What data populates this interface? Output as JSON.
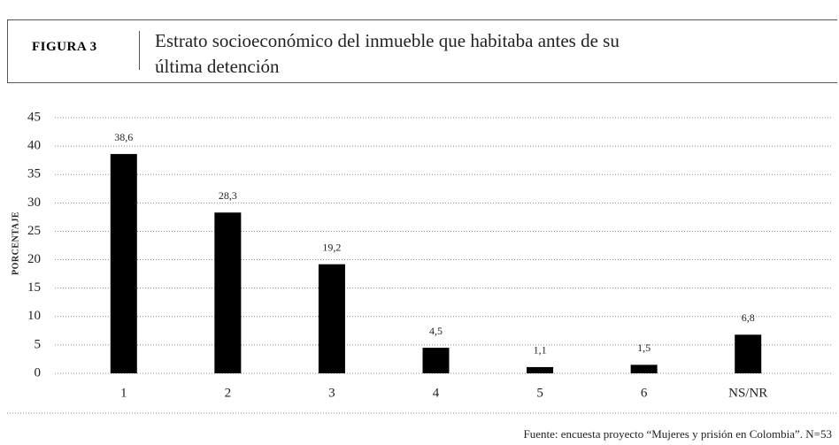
{
  "header": {
    "label": "FIGURA 3",
    "title": "Estrato socioeconómico del inmueble que habitaba antes de su última detención"
  },
  "chart_data": {
    "type": "bar",
    "ylabel": "PORCENTAJE",
    "categories": [
      "1",
      "2",
      "3",
      "4",
      "5",
      "6",
      "NS/NR"
    ],
    "values": [
      38.6,
      28.3,
      19.2,
      4.5,
      1.1,
      1.5,
      6.8
    ],
    "value_labels": [
      "38,6",
      "28,3",
      "19,2",
      "4,5",
      "1,1",
      "1,5",
      "6,8"
    ],
    "color": "#000000",
    "ylim": [
      0,
      45
    ],
    "yticks": [
      0,
      5,
      10,
      15,
      20,
      25,
      30,
      35,
      40,
      45
    ],
    "grid": true,
    "source": "Fuente: encuesta proyecto “Mujeres y prisión en Colombia”. N=53"
  }
}
